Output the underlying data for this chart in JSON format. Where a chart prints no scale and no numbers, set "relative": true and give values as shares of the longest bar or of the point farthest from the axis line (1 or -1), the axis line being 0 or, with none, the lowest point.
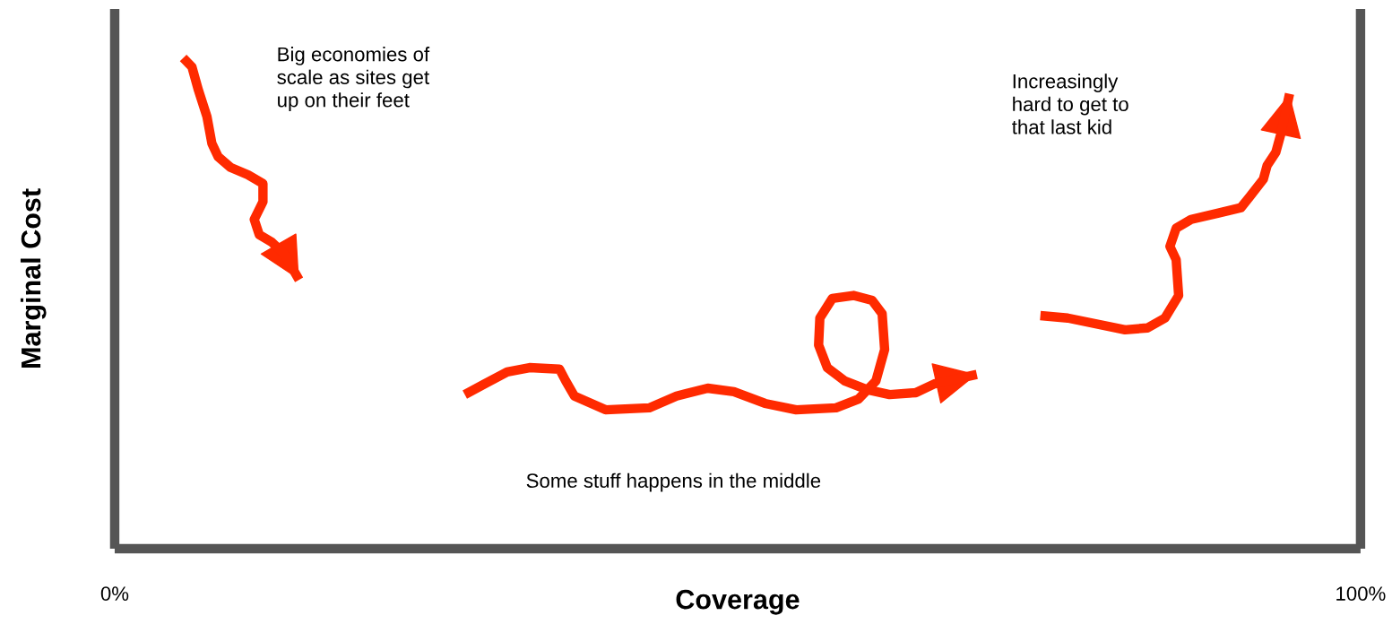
{
  "chart_data": {
    "type": "line",
    "relative": true,
    "xlabel": "Coverage",
    "ylabel": "Marginal Cost",
    "xlim": [
      0,
      100
    ],
    "xticks": [
      {
        "value": 0,
        "label": "0%"
      },
      {
        "value": 100,
        "label": "100%"
      }
    ],
    "tick_labels": "x",
    "legend": false,
    "marker": "none",
    "line_style": "solid",
    "annotations": [
      "Big economies of\nscale as sites get\nup on their feet",
      "Some stuff happens in the middle",
      "Increasingly\nhard to get to\nthat last kid"
    ],
    "series": [
      {
        "color": "#ff2a00",
        "x": [
          5.5,
          6.2,
          6.7,
          7.4,
          7.8,
          8.3,
          9.3,
          10.7,
          11.9,
          11.9,
          11.2,
          11.6,
          12.6,
          13.6,
          14.8
        ],
        "values": [
          1.0,
          0.982,
          0.936,
          0.881,
          0.826,
          0.799,
          0.777,
          0.762,
          0.744,
          0.707,
          0.671,
          0.64,
          0.625,
          0.601,
          0.548
        ]
      },
      {
        "color": "#ff2a00",
        "x": [
          28.1,
          29.7,
          31.5,
          33.3,
          35.7,
          36.2,
          36.9,
          39.4,
          42.9,
          45.1,
          47.6,
          49.7,
          52.2,
          54.7,
          57.9,
          59.7,
          61.1,
          61.8,
          61.6,
          60.8,
          59.3,
          57.6,
          56.6,
          56.5,
          57.2,
          58.6,
          60.4,
          62.2,
          64.3,
          65.8,
          69.2
        ],
        "values": [
          0.314,
          0.336,
          0.36,
          0.369,
          0.366,
          0.342,
          0.311,
          0.283,
          0.287,
          0.311,
          0.327,
          0.32,
          0.296,
          0.283,
          0.287,
          0.305,
          0.342,
          0.406,
          0.479,
          0.506,
          0.516,
          0.51,
          0.47,
          0.415,
          0.369,
          0.342,
          0.324,
          0.314,
          0.318,
          0.336,
          0.355
        ]
      },
      {
        "color": "#ff2a00",
        "x": [
          74.3,
          76.5,
          81.1,
          82.9,
          84.3,
          85.4,
          85.2,
          84.7,
          85.2,
          86.4,
          88.6,
          90.4,
          91.1,
          92.2,
          92.5,
          93.2,
          93.6,
          94.3
        ],
        "values": [
          0.475,
          0.47,
          0.446,
          0.45,
          0.47,
          0.516,
          0.589,
          0.616,
          0.653,
          0.671,
          0.684,
          0.695,
          0.717,
          0.753,
          0.781,
          0.808,
          0.845,
          0.927
        ]
      }
    ]
  }
}
